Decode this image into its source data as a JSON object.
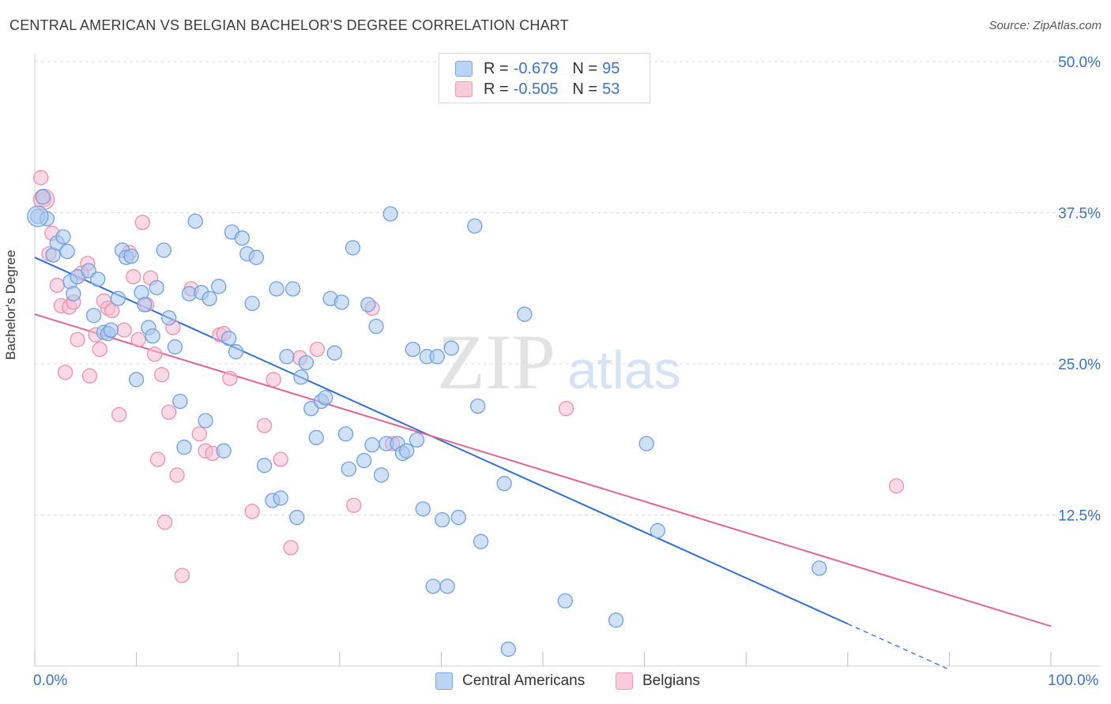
{
  "title": "CENTRAL AMERICAN VS BELGIAN BACHELOR'S DEGREE CORRELATION CHART",
  "source": "Source: ZipAtlas.com",
  "watermark": {
    "zip": "ZIP",
    "atlas": "atlas"
  },
  "colors": {
    "blue_fill": "#a9c8f0",
    "blue_stroke": "#6e9fe0",
    "blue_line": "#2f6fd0",
    "pink_fill": "#f7bccf",
    "pink_stroke": "#ee8fac",
    "pink_line": "#e0648e",
    "axis_text": "#3a73c4",
    "grid": "#dddddd"
  },
  "legend_top": {
    "rows": [
      {
        "r_label": "R =",
        "r_value": "-0.679",
        "n_label": "N =",
        "n_value": "95"
      },
      {
        "r_label": "R =",
        "r_value": "-0.505",
        "n_label": "N =",
        "n_value": "53"
      }
    ]
  },
  "legend_bottom": {
    "items": [
      "Central Americans",
      "Belgians"
    ]
  },
  "chart_data": {
    "type": "scatter",
    "title": "CENTRAL AMERICAN VS BELGIAN BACHELOR'S DEGREE CORRELATION CHART",
    "xlabel": "",
    "ylabel": "Bachelor's Degree",
    "xlim": [
      0,
      100
    ],
    "ylim": [
      0,
      50
    ],
    "x_tick_labels": [
      "0.0%",
      "100.0%"
    ],
    "y_ticks": [
      12.5,
      25.0,
      37.5,
      50.0
    ],
    "y_tick_labels": [
      "12.5%",
      "25.0%",
      "37.5%",
      "50.0%"
    ],
    "series": [
      {
        "name": "Central Americans",
        "R": -0.679,
        "N": 95,
        "trend": {
          "x0": 0,
          "y0": 33.8,
          "x1": 80,
          "y1": 3.5,
          "dash_to_x": 90
        },
        "points": [
          [
            0.3,
            37.2
          ],
          [
            0.8,
            38.8
          ],
          [
            1.2,
            37.0
          ],
          [
            1.8,
            34.0
          ],
          [
            2.2,
            35.0
          ],
          [
            2.8,
            35.5
          ],
          [
            3.2,
            34.3
          ],
          [
            3.5,
            31.8
          ],
          [
            3.8,
            30.8
          ],
          [
            4.2,
            32.2
          ],
          [
            5.3,
            32.7
          ],
          [
            5.8,
            29.0
          ],
          [
            6.2,
            32.0
          ],
          [
            6.8,
            27.6
          ],
          [
            7.2,
            27.5
          ],
          [
            7.5,
            27.8
          ],
          [
            8.2,
            30.4
          ],
          [
            8.6,
            34.4
          ],
          [
            9.0,
            33.8
          ],
          [
            9.5,
            33.9
          ],
          [
            10.0,
            23.7
          ],
          [
            10.5,
            30.9
          ],
          [
            10.8,
            29.9
          ],
          [
            11.2,
            28.0
          ],
          [
            11.6,
            27.3
          ],
          [
            12.0,
            31.3
          ],
          [
            12.7,
            34.4
          ],
          [
            13.2,
            28.8
          ],
          [
            13.8,
            26.4
          ],
          [
            14.3,
            21.9
          ],
          [
            14.7,
            18.1
          ],
          [
            15.2,
            30.8
          ],
          [
            15.8,
            36.8
          ],
          [
            16.4,
            30.9
          ],
          [
            16.8,
            20.3
          ],
          [
            17.2,
            30.4
          ],
          [
            18.1,
            31.4
          ],
          [
            18.6,
            17.8
          ],
          [
            19.1,
            27.1
          ],
          [
            19.4,
            35.9
          ],
          [
            19.8,
            26.0
          ],
          [
            20.4,
            35.4
          ],
          [
            20.9,
            34.1
          ],
          [
            21.4,
            30.0
          ],
          [
            21.8,
            33.8
          ],
          [
            22.6,
            16.6
          ],
          [
            23.4,
            13.7
          ],
          [
            23.8,
            31.2
          ],
          [
            24.2,
            13.9
          ],
          [
            24.8,
            25.6
          ],
          [
            25.4,
            31.2
          ],
          [
            25.8,
            12.3
          ],
          [
            26.2,
            23.9
          ],
          [
            26.7,
            25.1
          ],
          [
            27.2,
            21.3
          ],
          [
            27.7,
            18.9
          ],
          [
            28.2,
            21.9
          ],
          [
            28.6,
            22.2
          ],
          [
            29.1,
            30.4
          ],
          [
            29.5,
            25.9
          ],
          [
            30.2,
            30.1
          ],
          [
            30.6,
            19.2
          ],
          [
            30.9,
            16.3
          ],
          [
            31.3,
            34.6
          ],
          [
            32.4,
            17.0
          ],
          [
            32.8,
            29.9
          ],
          [
            33.2,
            18.3
          ],
          [
            33.6,
            28.1
          ],
          [
            34.1,
            15.8
          ],
          [
            34.6,
            18.4
          ],
          [
            35.0,
            37.4
          ],
          [
            35.7,
            18.4
          ],
          [
            36.2,
            17.6
          ],
          [
            36.6,
            17.8
          ],
          [
            37.2,
            26.2
          ],
          [
            37.6,
            18.7
          ],
          [
            38.2,
            13.0
          ],
          [
            38.6,
            25.6
          ],
          [
            39.2,
            6.6
          ],
          [
            39.6,
            25.6
          ],
          [
            40.1,
            12.1
          ],
          [
            40.6,
            6.6
          ],
          [
            41.0,
            26.3
          ],
          [
            41.7,
            12.3
          ],
          [
            43.3,
            36.4
          ],
          [
            43.6,
            21.5
          ],
          [
            43.9,
            10.3
          ],
          [
            46.2,
            15.1
          ],
          [
            46.6,
            1.4
          ],
          [
            48.2,
            29.1
          ],
          [
            52.2,
            5.4
          ],
          [
            57.2,
            3.8
          ],
          [
            60.2,
            18.4
          ],
          [
            61.3,
            11.2
          ],
          [
            77.2,
            8.1
          ]
        ]
      },
      {
        "name": "Belgians",
        "R": -0.505,
        "N": 53,
        "trend": {
          "x0": 0,
          "y0": 29.1,
          "x1": 100,
          "y1": 3.3
        },
        "points": [
          [
            0.6,
            40.4
          ],
          [
            0.9,
            38.6
          ],
          [
            1.4,
            34.1
          ],
          [
            1.7,
            35.8
          ],
          [
            2.2,
            31.5
          ],
          [
            2.6,
            29.8
          ],
          [
            3.0,
            24.3
          ],
          [
            3.4,
            29.7
          ],
          [
            3.8,
            30.1
          ],
          [
            4.2,
            27.0
          ],
          [
            4.6,
            32.5
          ],
          [
            5.2,
            33.3
          ],
          [
            5.4,
            24.0
          ],
          [
            6.0,
            27.4
          ],
          [
            6.4,
            26.2
          ],
          [
            6.8,
            30.2
          ],
          [
            7.2,
            29.6
          ],
          [
            7.6,
            29.4
          ],
          [
            8.3,
            20.8
          ],
          [
            8.8,
            27.8
          ],
          [
            9.3,
            34.2
          ],
          [
            9.7,
            32.2
          ],
          [
            10.2,
            27.0
          ],
          [
            10.6,
            36.7
          ],
          [
            11.0,
            29.9
          ],
          [
            11.4,
            32.1
          ],
          [
            11.8,
            25.8
          ],
          [
            12.1,
            17.1
          ],
          [
            12.5,
            24.1
          ],
          [
            12.8,
            11.9
          ],
          [
            13.2,
            21.0
          ],
          [
            13.6,
            28.0
          ],
          [
            14.0,
            15.8
          ],
          [
            14.5,
            7.5
          ],
          [
            15.4,
            31.2
          ],
          [
            16.2,
            19.2
          ],
          [
            16.8,
            17.8
          ],
          [
            17.5,
            17.6
          ],
          [
            18.2,
            27.4
          ],
          [
            18.6,
            27.5
          ],
          [
            19.2,
            23.8
          ],
          [
            21.4,
            12.8
          ],
          [
            22.6,
            19.9
          ],
          [
            23.5,
            23.7
          ],
          [
            24.2,
            17.1
          ],
          [
            25.2,
            9.8
          ],
          [
            26.1,
            25.5
          ],
          [
            27.8,
            26.2
          ],
          [
            31.4,
            13.3
          ],
          [
            33.2,
            29.6
          ],
          [
            35.2,
            18.4
          ],
          [
            52.3,
            21.3
          ],
          [
            84.8,
            14.9
          ]
        ]
      }
    ]
  }
}
